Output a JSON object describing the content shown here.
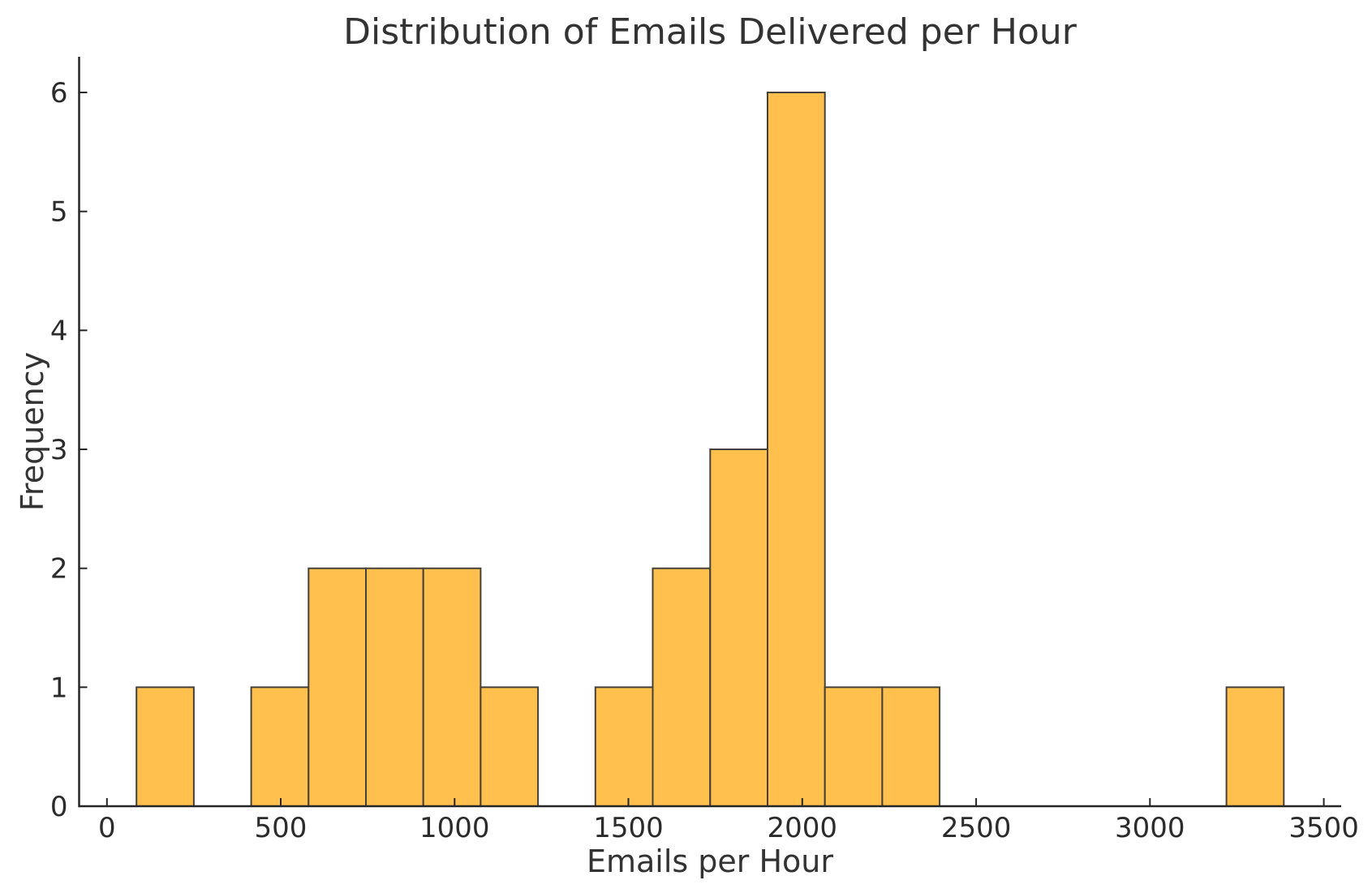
{
  "chart_data": {
    "type": "bar",
    "subtype": "histogram",
    "title": "Distribution of Emails Delivered per Hour",
    "xlabel": "Emails per Hour",
    "ylabel": "Frequency",
    "bin_edges": [
      85,
      250,
      415,
      580,
      745,
      910,
      1075,
      1240,
      1405,
      1570,
      1735,
      1900,
      2065,
      2230,
      2395,
      2560,
      2725,
      2890,
      3055,
      3220,
      3385
    ],
    "frequencies": [
      1,
      0,
      1,
      2,
      2,
      2,
      1,
      0,
      1,
      2,
      3,
      6,
      1,
      1,
      0,
      0,
      0,
      0,
      0,
      1
    ],
    "x_tick_values": [
      0,
      500,
      1000,
      1500,
      2000,
      2500,
      3000,
      3500
    ],
    "x_tick_labels": [
      "0",
      "500",
      "1000",
      "1500",
      "2000",
      "2500",
      "3000",
      "3500"
    ],
    "y_tick_values": [
      0,
      1,
      2,
      3,
      4,
      5,
      6
    ],
    "y_tick_labels": [
      "0",
      "1",
      "2",
      "3",
      "4",
      "5",
      "6"
    ],
    "xlim": [
      -80,
      3550
    ],
    "ylim": [
      0,
      6.3
    ],
    "grid": false,
    "legend": "none",
    "tick_direction": "in",
    "colors": {
      "bar_fill": "#FFC04D",
      "bar_edge": "#45413A",
      "axis": "#262626",
      "tick_label": "#2B2B2B",
      "text": "#333333",
      "background": "#FFFFFF"
    }
  }
}
